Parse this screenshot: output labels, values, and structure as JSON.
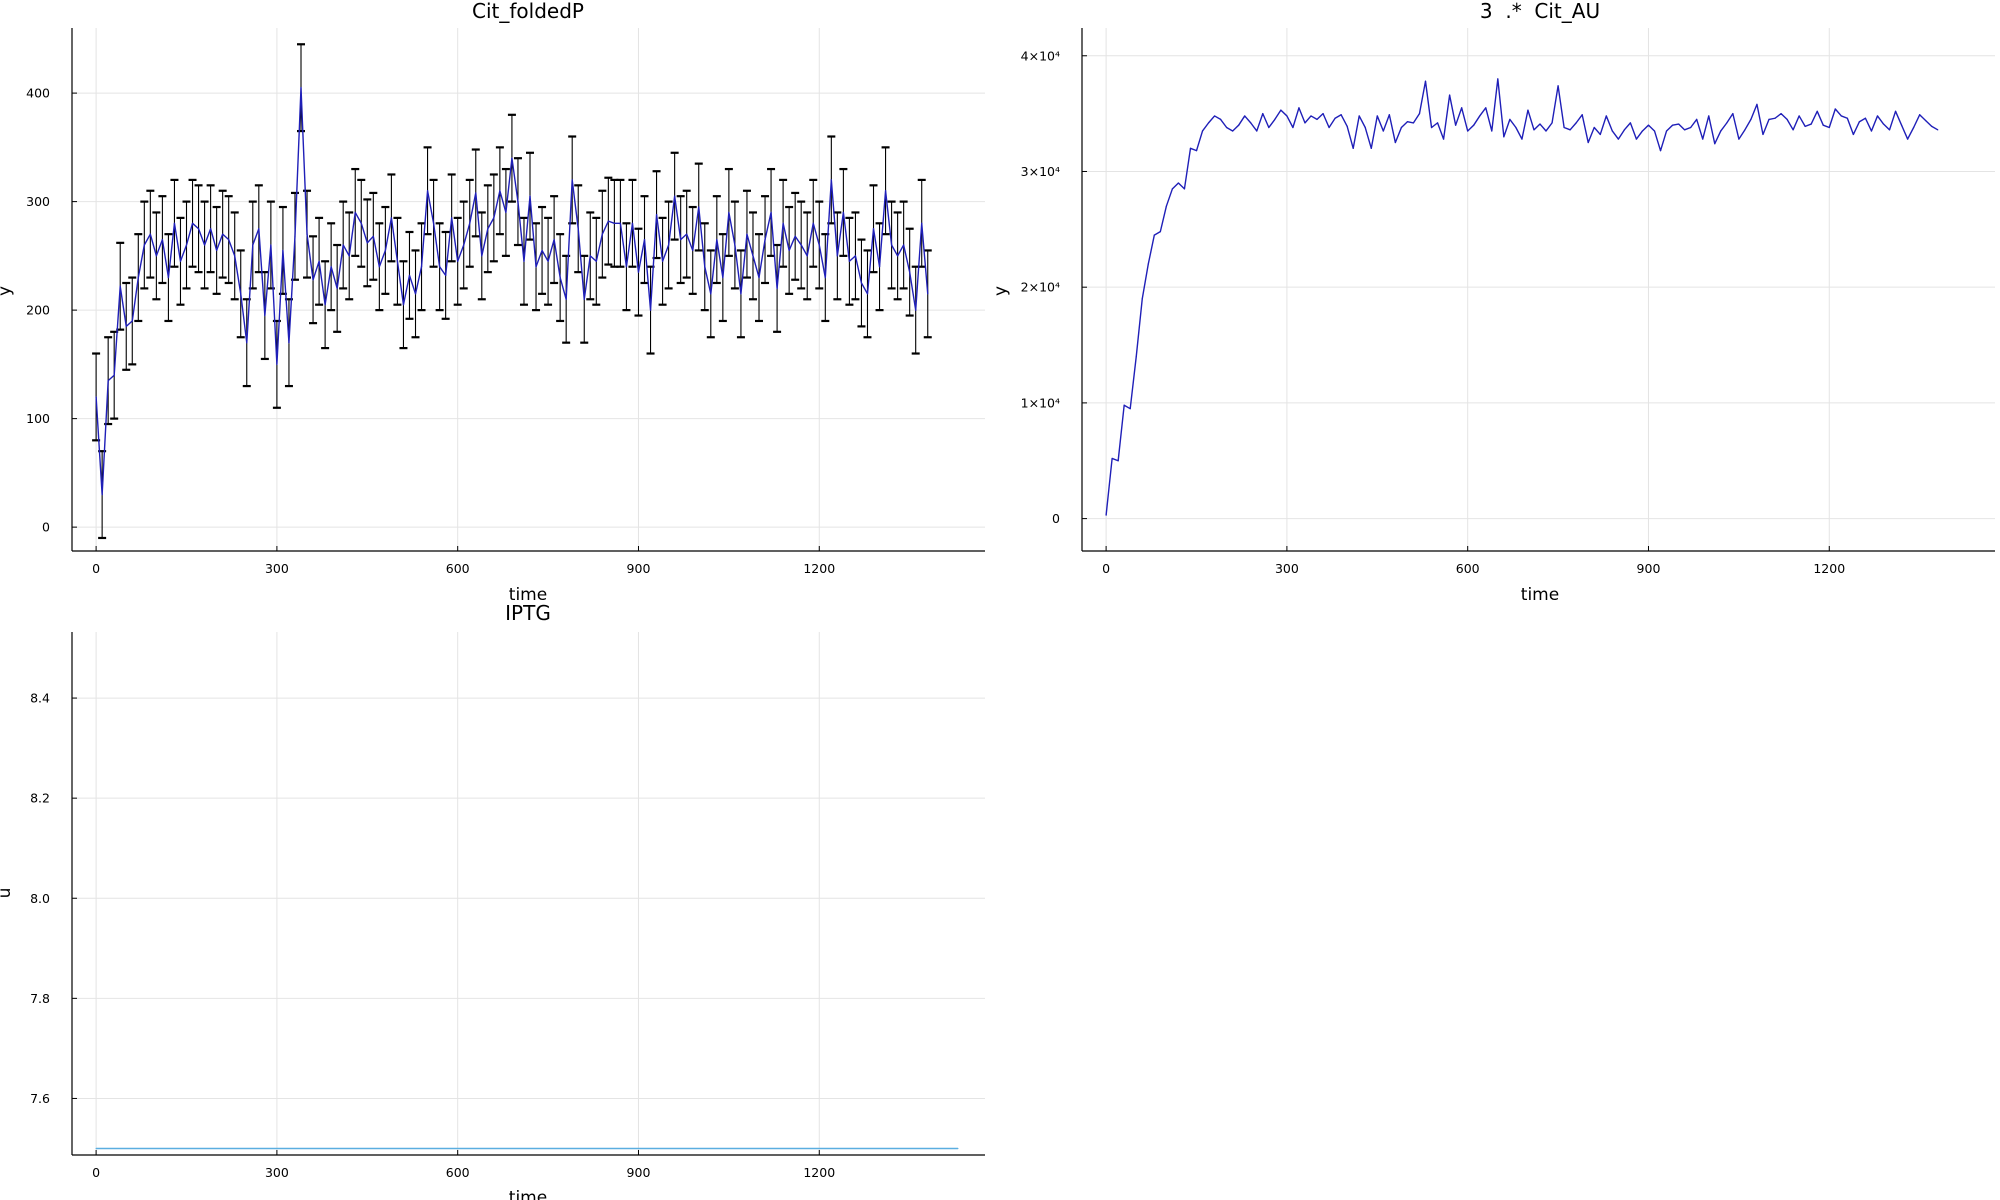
{
  "chart_data": [
    {
      "type": "line",
      "title": "Cit_foldedP",
      "xlabel": "time",
      "ylabel": "y",
      "grid": true,
      "xlim": [
        -40,
        1475
      ],
      "ylim": [
        -22,
        460
      ],
      "xticks": [
        0,
        300,
        600,
        900,
        1200
      ],
      "xtick_labels": [
        "0",
        "300",
        "600",
        "900",
        "1200"
      ],
      "yticks": [
        0,
        100,
        200,
        300,
        400
      ],
      "ytick_labels": [
        "0",
        "100",
        "200",
        "300",
        "400"
      ],
      "series": [
        {
          "color": "#1f1fb8",
          "error_color": "#000000",
          "x_start": 0,
          "x_step": 10,
          "y": [
            120,
            30,
            135,
            140,
            222,
            185,
            190,
            230,
            260,
            270,
            250,
            265,
            230,
            280,
            245,
            260,
            280,
            275,
            260,
            275,
            255,
            270,
            265,
            250,
            215,
            170,
            260,
            275,
            195,
            260,
            150,
            255,
            170,
            268,
            405,
            270,
            228,
            245,
            205,
            240,
            220,
            260,
            250,
            290,
            280,
            262,
            268,
            240,
            255,
            285,
            245,
            205,
            232,
            215,
            240,
            310,
            280,
            240,
            232,
            285,
            245,
            260,
            280,
            308,
            250,
            275,
            285,
            310,
            290,
            340,
            300,
            245,
            305,
            240,
            255,
            245,
            265,
            230,
            210,
            320,
            275,
            210,
            250,
            245,
            270,
            282,
            280,
            280,
            240,
            280,
            235,
            265,
            200,
            288,
            245,
            260,
            305,
            265,
            270,
            255,
            295,
            240,
            215,
            265,
            230,
            290,
            260,
            215,
            270,
            250,
            230,
            265,
            290,
            220,
            280,
            255,
            268,
            260,
            250,
            280,
            260,
            230,
            320,
            250,
            290,
            245,
            250,
            225,
            215,
            275,
            240,
            310,
            260,
            250,
            260,
            235,
            200,
            280,
            215
          ],
          "err": [
            40,
            40,
            40,
            40,
            40,
            40,
            40,
            40,
            40,
            40,
            40,
            40,
            40,
            40,
            40,
            40,
            40,
            40,
            40,
            40,
            40,
            40,
            40,
            40,
            40,
            40,
            40,
            40,
            40,
            40,
            40,
            40,
            40,
            40,
            40,
            40,
            40,
            40,
            40,
            40,
            40,
            40,
            40,
            40,
            40,
            40,
            40,
            40,
            40,
            40,
            40,
            40,
            40,
            40,
            40,
            40,
            40,
            40,
            40,
            40,
            40,
            40,
            40,
            40,
            40,
            40,
            40,
            40,
            40,
            40,
            40,
            40,
            40,
            40,
            40,
            40,
            40,
            40,
            40,
            40,
            40,
            40,
            40,
            40,
            40,
            40,
            40,
            40,
            40,
            40,
            40,
            40,
            40,
            40,
            40,
            40,
            40,
            40,
            40,
            40,
            40,
            40,
            40,
            40,
            40,
            40,
            40,
            40,
            40,
            40,
            40,
            40,
            40,
            40,
            40,
            40,
            40,
            40,
            40,
            40,
            40,
            40,
            40,
            40,
            40,
            40,
            40,
            40,
            40,
            40,
            40,
            40,
            40,
            40,
            40,
            40,
            40,
            40,
            40
          ]
        }
      ]
    },
    {
      "type": "line",
      "title": "3  .*  Cit_AU",
      "xlabel": "time",
      "ylabel": "y",
      "grid": true,
      "xlim": [
        -40,
        1475
      ],
      "ylim": [
        -2800,
        42400
      ],
      "xticks": [
        0,
        300,
        600,
        900,
        1200
      ],
      "xtick_labels": [
        "0",
        "300",
        "600",
        "900",
        "1200"
      ],
      "yticks": [
        0,
        10000,
        20000,
        30000,
        40000
      ],
      "ytick_labels": [
        "0",
        "1×10⁴",
        "2×10⁴",
        "3×10⁴",
        "4×10⁴"
      ],
      "series": [
        {
          "color": "#1f1fb8",
          "error_color": "#000000",
          "x_start": 0,
          "x_step": 10,
          "y": [
            300,
            5200,
            5000,
            9800,
            9500,
            14000,
            19000,
            22000,
            24500,
            24800,
            27000,
            28500,
            29000,
            28500,
            32000,
            31800,
            33500,
            34200,
            34800,
            34500,
            33800,
            33500,
            34000,
            34800,
            34200,
            33500,
            35000,
            33800,
            34500,
            35300,
            34800,
            33800,
            35500,
            34200,
            34800,
            34500,
            35000,
            33800,
            34600,
            34900,
            33900,
            32000,
            34800,
            33800,
            32000,
            34800,
            33500,
            34900,
            32500,
            33800,
            34300,
            34200,
            35000,
            37800,
            33800,
            34200,
            32800,
            36600,
            34000,
            35500,
            33500,
            34000,
            34800,
            35500,
            33500,
            38000,
            33000,
            34500,
            33800,
            32800,
            35300,
            33600,
            34100,
            33500,
            34200,
            37400,
            33800,
            33600,
            34200,
            34900,
            32500,
            33800,
            33200,
            34800,
            33500,
            32800,
            33600,
            34200,
            32800,
            33500,
            34000,
            33500,
            31800,
            33500,
            34000,
            34100,
            33600,
            33800,
            34500,
            32800,
            34800,
            32400,
            33500,
            34200,
            35000,
            32800,
            33600,
            34500,
            35800,
            33200,
            34500,
            34600,
            35000,
            34500,
            33600,
            34800,
            33900,
            34100,
            35200,
            34000,
            33800,
            35400,
            34800,
            34600,
            33200,
            34300,
            34600,
            33500,
            34800,
            34100,
            33600,
            35200,
            34000,
            32800,
            33800,
            34900,
            34400,
            33900,
            33600
          ]
        }
      ]
    },
    {
      "type": "line",
      "title": "IPTG",
      "xlabel": "time",
      "ylabel": "u",
      "grid": true,
      "xlim": [
        -40,
        1475
      ],
      "ylim": [
        7.487,
        8.532
      ],
      "xticks": [
        0,
        300,
        600,
        900,
        1200
      ],
      "xtick_labels": [
        "0",
        "300",
        "600",
        "900",
        "1200"
      ],
      "yticks": [
        7.6,
        7.8,
        8.0,
        8.2,
        8.4
      ],
      "ytick_labels": [
        "7.6",
        "7.8",
        "8.0",
        "8.2",
        "8.4"
      ],
      "series": [
        {
          "color": "#5aaee0",
          "x": [
            0,
            1430
          ],
          "y": [
            7.5,
            7.5
          ]
        }
      ]
    }
  ]
}
